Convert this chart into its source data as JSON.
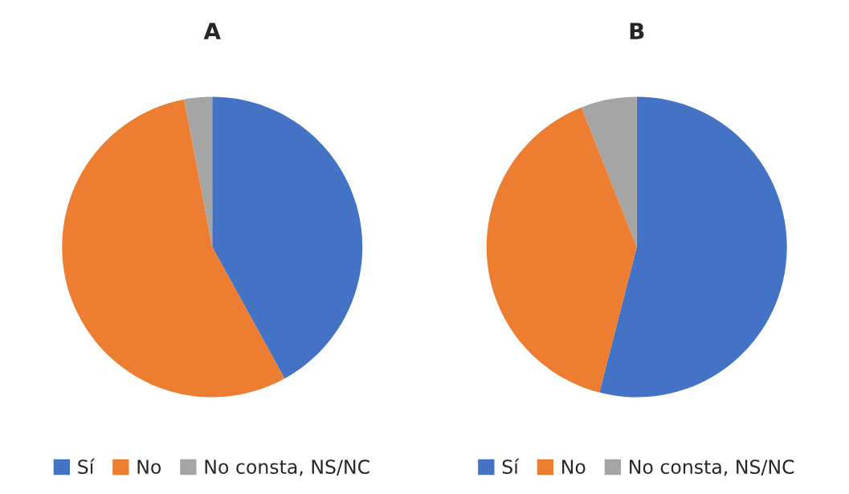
{
  "chart_data": [
    {
      "type": "pie",
      "title": "A",
      "categories": [
        "Sí",
        "No",
        "No consta, NS/NC"
      ],
      "values": [
        42,
        55,
        3
      ],
      "colors": [
        "#4472c4",
        "#ed7d31",
        "#a5a5a5"
      ],
      "legend": "bottom"
    },
    {
      "type": "pie",
      "title": "B",
      "categories": [
        "Sí",
        "No",
        "No consta, NS/NC"
      ],
      "values": [
        54,
        40,
        6
      ],
      "colors": [
        "#4472c4",
        "#ed7d31",
        "#a5a5a5"
      ],
      "legend": "bottom"
    }
  ]
}
